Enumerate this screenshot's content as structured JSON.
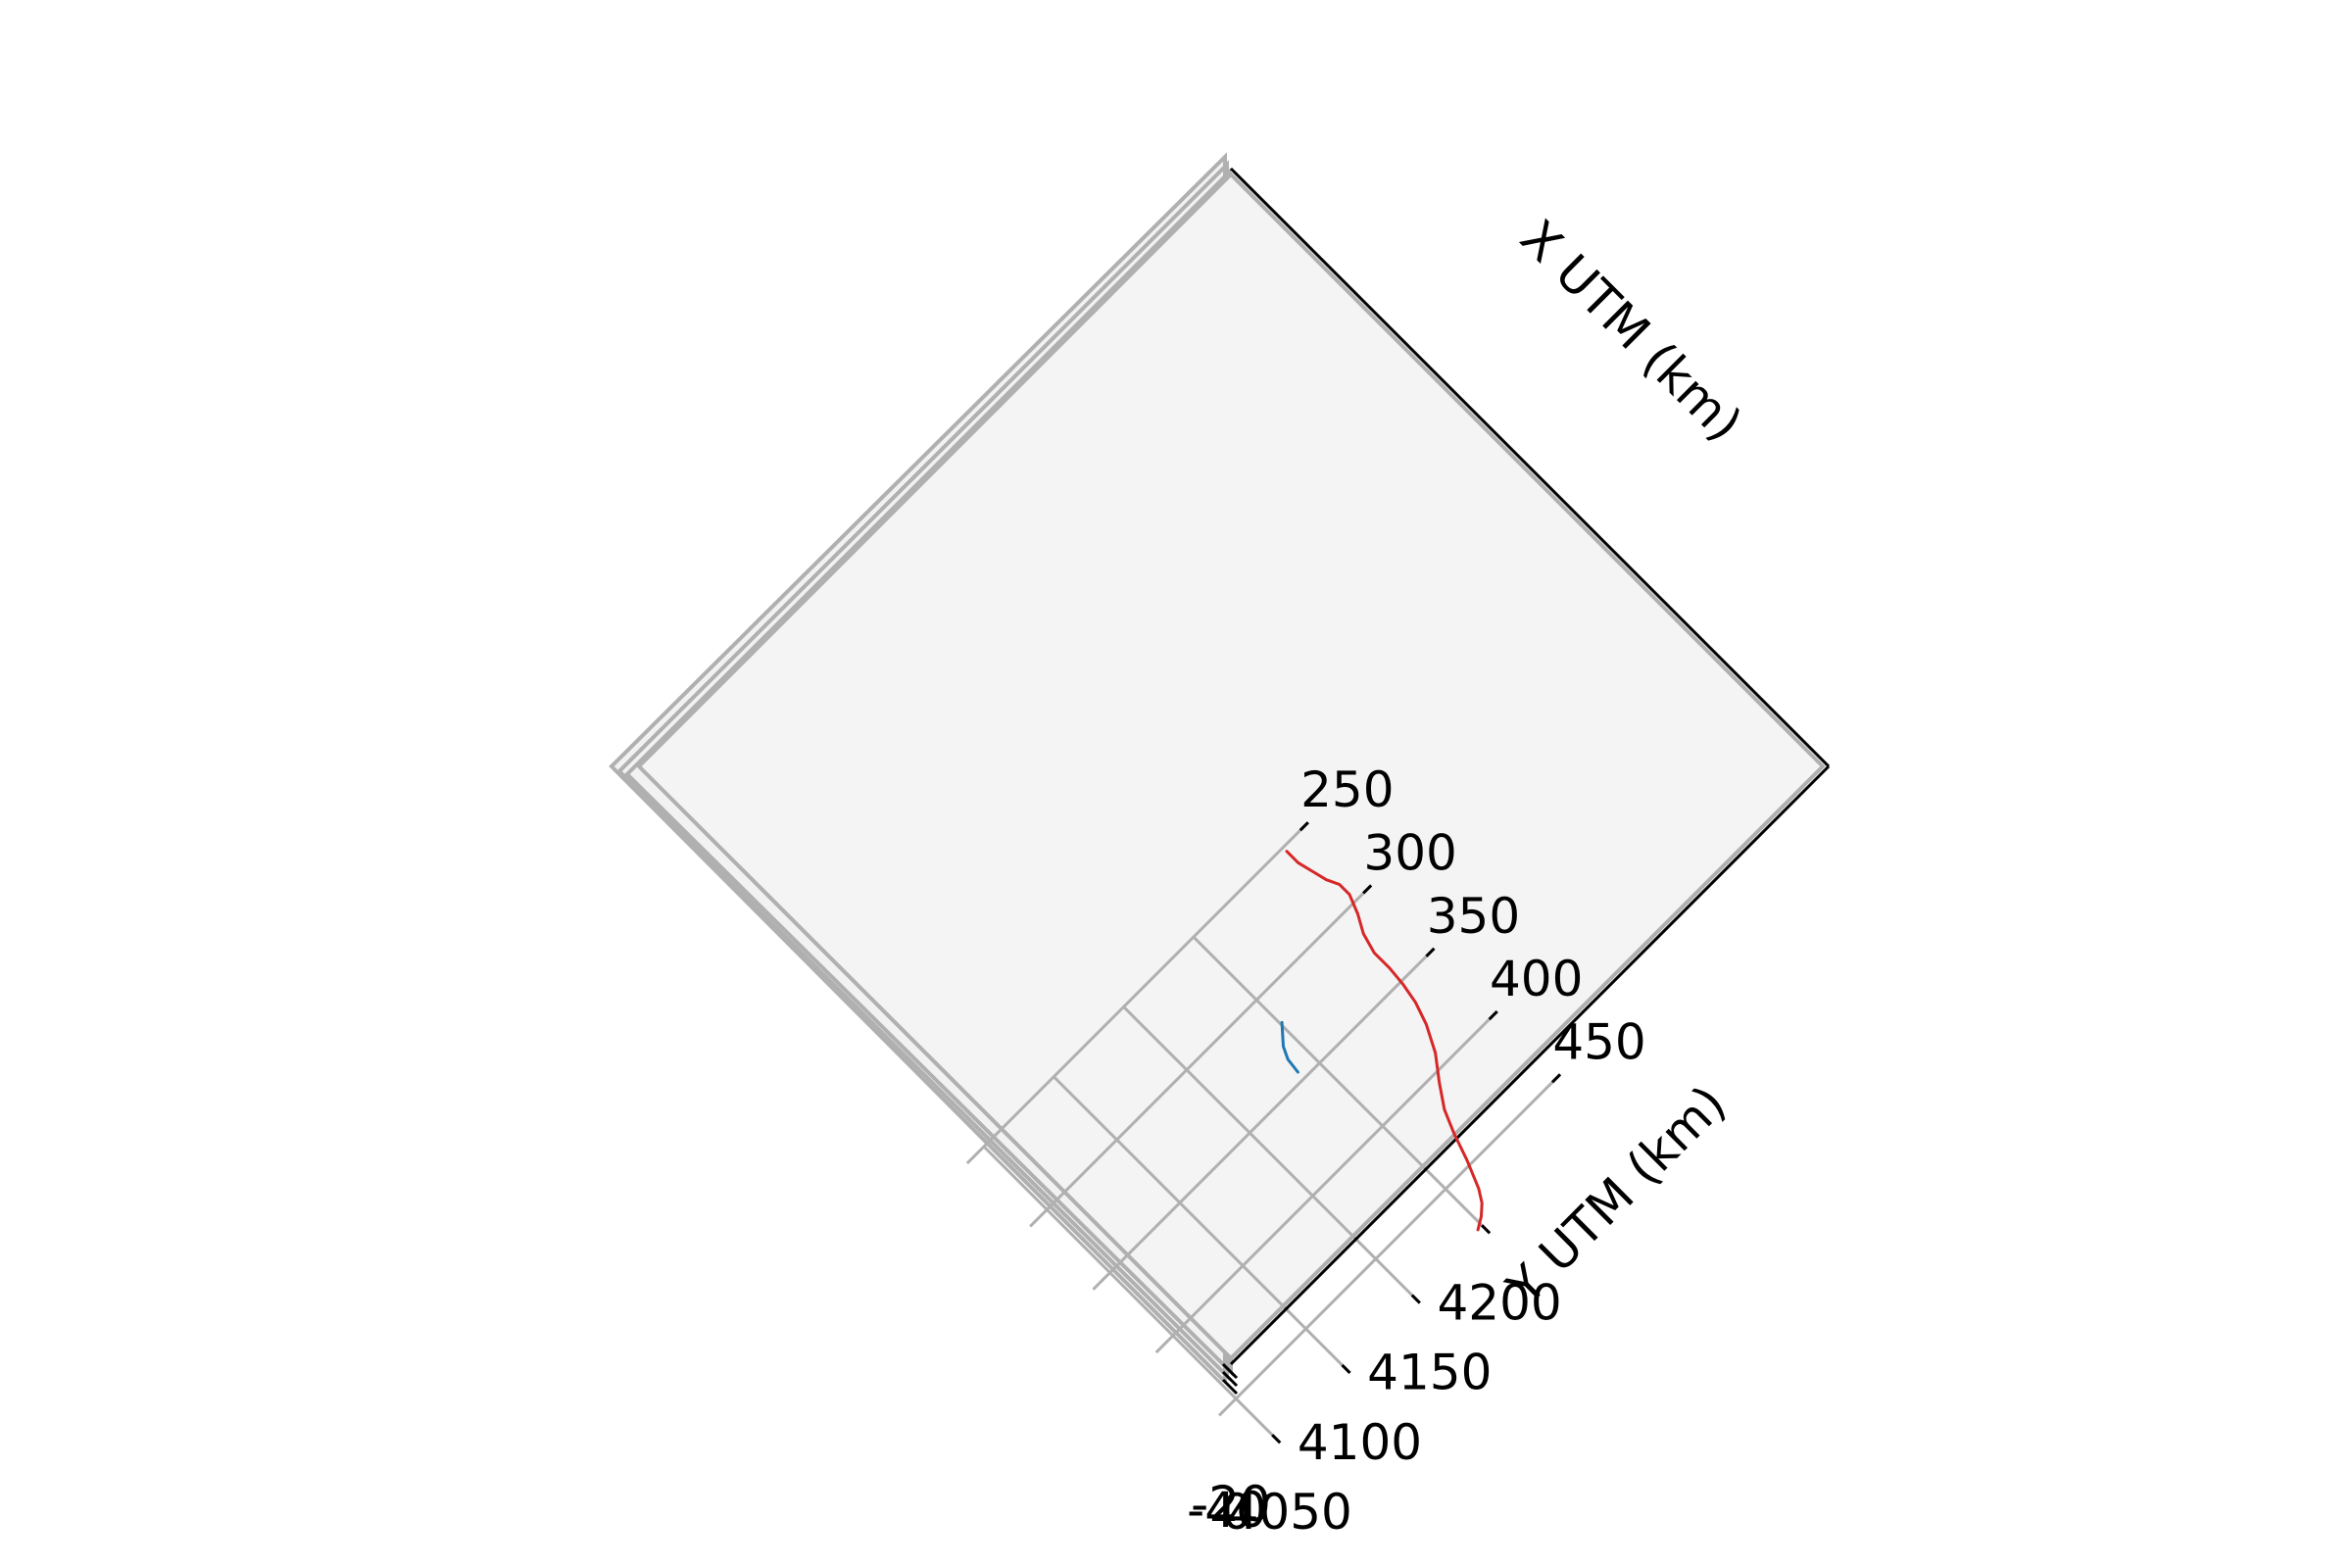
{
  "chart_data": {
    "type": "line",
    "projection": "3d",
    "view": "top-down, rotated 45 degrees",
    "title": "",
    "xlabel": "X UTM (km)",
    "ylabel": "Y UTM (km)",
    "zlabel": "",
    "xlim": [
      250,
      485
    ],
    "ylim": [
      4038,
      4282
    ],
    "x_ticks": [
      "250",
      "300",
      "350",
      "400",
      "450"
    ],
    "y_ticks": [
      "4050",
      "4100",
      "4150",
      "4200"
    ],
    "z_tick_labels": [
      "-40",
      "-20",
      "0"
    ],
    "grid": true,
    "pane_color": "#f2f2f2",
    "series": [
      {
        "color": "#d62728",
        "points": [
          [
            479,
            4197
          ],
          [
            475,
            4203
          ],
          [
            470,
            4208
          ],
          [
            463,
            4212
          ],
          [
            447,
            4218
          ],
          [
            431,
            4223
          ],
          [
            418,
            4228
          ],
          [
            405,
            4236
          ],
          [
            392,
            4245
          ],
          [
            377,
            4252
          ],
          [
            364,
            4256
          ],
          [
            352,
            4258
          ],
          [
            340,
            4259
          ],
          [
            328,
            4259
          ],
          [
            316,
            4262
          ],
          [
            306,
            4267
          ],
          [
            295,
            4271
          ],
          [
            287,
            4271
          ],
          [
            280,
            4268
          ],
          [
            271,
            4266
          ],
          [
            262,
            4264
          ],
          [
            253,
            4264
          ]
        ]
      },
      {
        "color": "#1f77b4",
        "points": [
          [
            345,
            4189
          ],
          [
            336,
            4190
          ],
          [
            329,
            4193
          ],
          [
            324,
            4197
          ],
          [
            319,
            4201
          ]
        ]
      }
    ]
  }
}
